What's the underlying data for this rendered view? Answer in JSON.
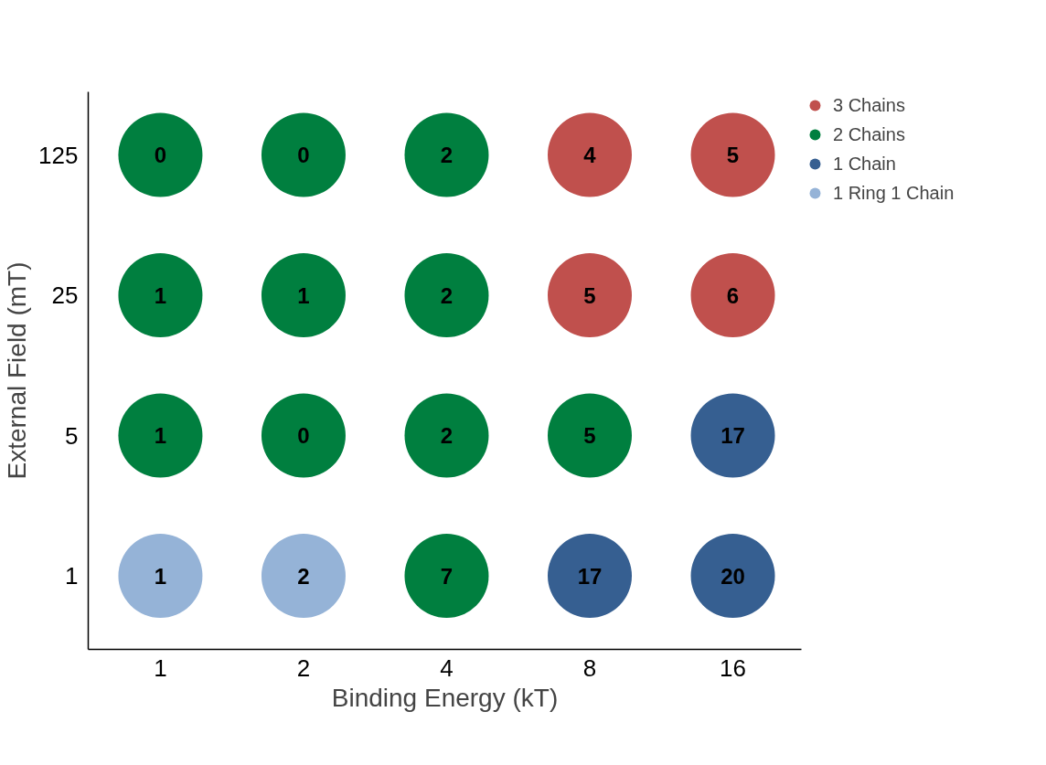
{
  "chart_data": {
    "type": "scatter",
    "xlabel": "Binding Energy (kT)",
    "ylabel": "External Field (mT)",
    "log": "xy",
    "xlim": [
      0.705,
      22.3
    ],
    "ylim": [
      0.43,
      258
    ],
    "xticks": [
      1,
      2,
      4,
      8,
      16
    ],
    "yticks": [
      1,
      5,
      25,
      125
    ],
    "grid": false,
    "legend": "top right",
    "marker": "circle",
    "series": [
      {
        "name": "3 Chains",
        "color": "#c0504d",
        "x": [
          8,
          16,
          8,
          16
        ],
        "values": [
          125,
          125,
          25,
          25
        ]
      },
      {
        "name": "2 Chains",
        "color": "#007f3f",
        "x": [
          1,
          2,
          4,
          1,
          2,
          4,
          1,
          2,
          4,
          8,
          4
        ],
        "values": [
          125,
          125,
          125,
          25,
          25,
          25,
          5,
          5,
          5,
          5,
          1
        ]
      },
      {
        "name": "1 Chain",
        "color": "#365f91",
        "x": [
          16,
          8,
          16
        ],
        "values": [
          5,
          1,
          1
        ]
      },
      {
        "name": "1 Ring 1 Chain",
        "color": "#95b3d7",
        "x": [
          1,
          2
        ],
        "values": [
          1,
          1
        ]
      }
    ],
    "annotations": [
      {
        "text": "0",
        "x": 1,
        "y": 125
      },
      {
        "text": "0",
        "x": 2,
        "y": 125
      },
      {
        "text": "2",
        "x": 4,
        "y": 125
      },
      {
        "text": "4",
        "x": 8,
        "y": 125
      },
      {
        "text": "5",
        "x": 16,
        "y": 125
      },
      {
        "text": "1",
        "x": 1,
        "y": 25
      },
      {
        "text": "1",
        "x": 2,
        "y": 25
      },
      {
        "text": "2",
        "x": 4,
        "y": 25
      },
      {
        "text": "5",
        "x": 8,
        "y": 25
      },
      {
        "text": "6",
        "x": 16,
        "y": 25
      },
      {
        "text": "1",
        "x": 1,
        "y": 5
      },
      {
        "text": "0",
        "x": 2,
        "y": 5
      },
      {
        "text": "2",
        "x": 4,
        "y": 5
      },
      {
        "text": "5",
        "x": 8,
        "y": 5
      },
      {
        "text": "17",
        "x": 16,
        "y": 5
      },
      {
        "text": "1",
        "x": 1,
        "y": 1
      },
      {
        "text": "2",
        "x": 2,
        "y": 1
      },
      {
        "text": "7",
        "x": 4,
        "y": 1
      },
      {
        "text": "17",
        "x": 8,
        "y": 1
      },
      {
        "text": "20",
        "x": 16,
        "y": 1
      }
    ]
  }
}
